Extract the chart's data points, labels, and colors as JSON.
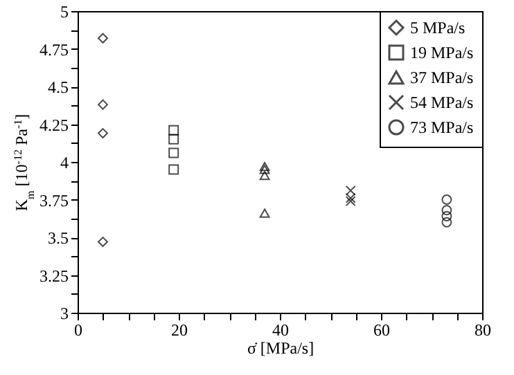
{
  "chart_data": {
    "type": "scatter",
    "xlabel": "σ̇ [MPa/s]",
    "ylabel": "K$_{m}$ [10$^{-12}$ Pa$^{-1}$]",
    "xlim": [
      0,
      80
    ],
    "ylim": [
      3,
      5
    ],
    "xticks": [
      0,
      {
        "value": 5,
        "label": null
      },
      {
        "value": 10,
        "label": null
      },
      {
        "value": 15,
        "label": null
      },
      20,
      {
        "value": 25,
        "label": null
      },
      {
        "value": 30,
        "label": null
      },
      {
        "value": 35,
        "label": null
      },
      40,
      {
        "value": 45,
        "label": null
      },
      {
        "value": 50,
        "label": null
      },
      {
        "value": 55,
        "label": null
      },
      60,
      {
        "value": 65,
        "label": null
      },
      {
        "value": 70,
        "label": null
      },
      {
        "value": 75,
        "label": null
      },
      80
    ],
    "yticks": [
      3,
      {
        "value": 3.125,
        "label": null
      },
      3.25,
      {
        "value": 3.375,
        "label": null
      },
      3.5,
      {
        "value": 3.625,
        "label": null
      },
      3.75,
      {
        "value": 3.875,
        "label": null
      },
      4,
      {
        "value": 4.125,
        "label": null
      },
      4.25,
      {
        "value": 4.375,
        "label": null
      },
      4.5,
      {
        "value": 4.625,
        "label": null
      },
      4.75,
      {
        "value": 4.875,
        "label": null
      },
      5
    ],
    "grid": false,
    "legend": "top right",
    "series": [
      {
        "name": "5 MPa/s",
        "color": "#000000",
        "marker": "diamond",
        "x": [
          5,
          5,
          5,
          5
        ],
        "values": [
          4.82,
          4.38,
          4.19,
          3.47
        ]
      },
      {
        "name": "19 MPa/s",
        "color": "#000000",
        "marker": "square",
        "x": [
          19,
          19,
          19,
          19
        ],
        "values": [
          4.21,
          4.15,
          4.06,
          3.95
        ]
      },
      {
        "name": "37 MPa/s",
        "color": "#000000",
        "marker": "triangle",
        "x": [
          37,
          37,
          37,
          37
        ],
        "values": [
          3.97,
          3.95,
          3.91,
          3.66
        ]
      },
      {
        "name": "54 MPa/s",
        "color": "#000000",
        "marker": "cross",
        "x": [
          54,
          54,
          54
        ],
        "values": [
          3.81,
          3.76,
          3.74
        ]
      },
      {
        "name": "73 MPa/s",
        "color": "#000000",
        "marker": "circle",
        "x": [
          73,
          73,
          73,
          73
        ],
        "values": [
          3.75,
          3.68,
          3.64,
          3.6
        ]
      }
    ]
  }
}
